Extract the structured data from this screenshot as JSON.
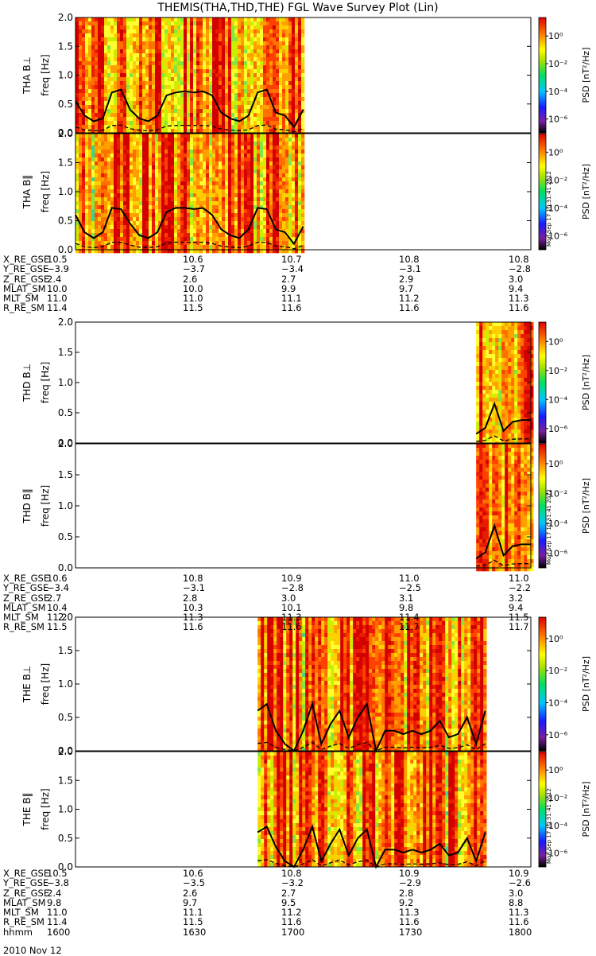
{
  "title": "THEMIS(THA,THD,THE) FGL Wave Survey Plot (Lin)",
  "colors": {
    "trace": "#000000",
    "background": "#ffffff"
  },
  "colorbar": {
    "label": "PSD [nT²/Hz]",
    "ticks": [
      "10⁰",
      "10⁻²",
      "10⁻⁴",
      "10⁻⁶"
    ],
    "stamp": "Mon Sep 17 10:31:41 2012"
  },
  "chart_data": [
    {
      "type": "heatmap",
      "probe": "THA",
      "panels": [
        {
          "label": "THA B⊥",
          "ylabel": "freq [Hz]",
          "ylim": [
            0,
            2
          ],
          "yticks": [
            "2.0",
            "1.5",
            "1.0",
            "0.5",
            "0.0"
          ],
          "data_range": [
            0.0,
            0.5
          ],
          "line_x": [
            0.0,
            0.02,
            0.04,
            0.06,
            0.08,
            0.1,
            0.12,
            0.14,
            0.16,
            0.18,
            0.2,
            0.22,
            0.24,
            0.26,
            0.28,
            0.3,
            0.32,
            0.34,
            0.36,
            0.38,
            0.4,
            0.42,
            0.44,
            0.46,
            0.48,
            0.5
          ],
          "line_y": [
            0.55,
            0.3,
            0.2,
            0.25,
            0.7,
            0.75,
            0.4,
            0.25,
            0.2,
            0.3,
            0.65,
            0.7,
            0.72,
            0.7,
            0.72,
            0.65,
            0.35,
            0.25,
            0.2,
            0.3,
            0.7,
            0.75,
            0.35,
            0.3,
            0.1,
            0.4
          ]
        },
        {
          "label": "THA B‖",
          "ylabel": "freq [Hz]",
          "ylim": [
            0,
            2
          ],
          "yticks": [
            "2.0",
            "1.5",
            "1.0",
            "0.5",
            "0.0"
          ],
          "data_range": [
            0.0,
            0.5
          ],
          "line_x": [
            0.0,
            0.02,
            0.04,
            0.06,
            0.08,
            0.1,
            0.12,
            0.14,
            0.16,
            0.18,
            0.2,
            0.22,
            0.24,
            0.26,
            0.28,
            0.3,
            0.32,
            0.34,
            0.36,
            0.38,
            0.4,
            0.42,
            0.44,
            0.46,
            0.48,
            0.5
          ],
          "line_y": [
            0.6,
            0.3,
            0.2,
            0.3,
            0.72,
            0.7,
            0.45,
            0.25,
            0.2,
            0.3,
            0.65,
            0.72,
            0.72,
            0.7,
            0.72,
            0.6,
            0.35,
            0.25,
            0.2,
            0.35,
            0.72,
            0.7,
            0.35,
            0.3,
            0.1,
            0.4
          ]
        }
      ],
      "ephemeris": [
        {
          "label": "X_RE_GSE",
          "values": [
            "10.5",
            "10.6",
            "10.7",
            "10.8",
            "10.8"
          ]
        },
        {
          "label": "Y_RE_GSE",
          "values": [
            "−3.9",
            "−3.7",
            "−3.4",
            "−3.1",
            "−2.8"
          ]
        },
        {
          "label": "Z_RE_GSE",
          "values": [
            "2.4",
            "2.6",
            "2.7",
            "2.9",
            "3.0"
          ]
        },
        {
          "label": "MLAT_SM",
          "values": [
            "10.0",
            "10.0",
            "9.9",
            "9.7",
            "9.4"
          ]
        },
        {
          "label": "MLT_SM",
          "values": [
            "11.0",
            "11.0",
            "11.1",
            "11.2",
            "11.3"
          ]
        },
        {
          "label": "R_RE_SM",
          "values": [
            "11.4",
            "11.5",
            "11.6",
            "11.6",
            "11.6"
          ]
        }
      ]
    },
    {
      "type": "heatmap",
      "probe": "THD",
      "panels": [
        {
          "label": "THD B⊥",
          "ylabel": "freq [Hz]",
          "ylim": [
            0,
            2
          ],
          "yticks": [
            "2.0",
            "1.5",
            "1.0",
            "0.5",
            "0.0"
          ],
          "data_range": [
            0.88,
            1.0
          ],
          "line_x": [
            0.88,
            0.9,
            0.92,
            0.94,
            0.96,
            0.98,
            1.0
          ],
          "line_y": [
            0.15,
            0.25,
            0.65,
            0.2,
            0.35,
            0.38,
            0.38
          ]
        },
        {
          "label": "THD B‖",
          "ylabel": "freq [Hz]",
          "ylim": [
            0,
            2
          ],
          "yticks": [
            "2.0",
            "1.5",
            "1.0",
            "0.5",
            "0.0"
          ],
          "data_range": [
            0.88,
            1.0
          ],
          "line_x": [
            0.88,
            0.9,
            0.92,
            0.94,
            0.96,
            0.98,
            1.0
          ],
          "line_y": [
            0.15,
            0.25,
            0.68,
            0.2,
            0.35,
            0.38,
            0.38
          ]
        }
      ],
      "ephemeris": [
        {
          "label": "X_RE_GSE",
          "values": [
            "10.6",
            "10.8",
            "10.9",
            "11.0",
            "11.0"
          ]
        },
        {
          "label": "Y_RE_GSE",
          "values": [
            "−3.4",
            "−3.1",
            "−2.8",
            "−2.5",
            "−2.2"
          ]
        },
        {
          "label": "Z_RE_GSE",
          "values": [
            "2.7",
            "2.8",
            "3.0",
            "3.1",
            "3.2"
          ]
        },
        {
          "label": "MLAT_SM",
          "values": [
            "10.4",
            "10.3",
            "10.1",
            "9.8",
            "9.4"
          ]
        },
        {
          "label": "MLT_SM",
          "values": [
            "11.2",
            "11.3",
            "11.3",
            "11.4",
            "11.5"
          ]
        },
        {
          "label": "R_RE_SM",
          "values": [
            "11.5",
            "11.6",
            "11.6",
            "11.7",
            "11.7"
          ]
        }
      ]
    },
    {
      "type": "heatmap",
      "probe": "THE",
      "panels": [
        {
          "label": "THE B⊥",
          "ylabel": "freq [Hz]",
          "ylim": [
            0,
            2
          ],
          "yticks": [
            "2.0",
            "1.5",
            "1.0",
            "0.5",
            "0.0"
          ],
          "data_range": [
            0.4,
            0.9
          ],
          "line_x": [
            0.4,
            0.42,
            0.44,
            0.46,
            0.48,
            0.5,
            0.52,
            0.54,
            0.56,
            0.58,
            0.6,
            0.62,
            0.64,
            0.66,
            0.68,
            0.7,
            0.72,
            0.74,
            0.76,
            0.78,
            0.8,
            0.82,
            0.84,
            0.86,
            0.88,
            0.9
          ],
          "line_y": [
            0.6,
            0.7,
            0.3,
            0.1,
            0.0,
            0.3,
            0.7,
            0.1,
            0.4,
            0.6,
            0.2,
            0.5,
            0.7,
            0.0,
            0.3,
            0.3,
            0.25,
            0.3,
            0.25,
            0.3,
            0.45,
            0.2,
            0.25,
            0.5,
            0.1,
            0.6
          ]
        },
        {
          "label": "THE B‖",
          "ylabel": "freq [Hz]",
          "ylim": [
            0,
            2
          ],
          "yticks": [
            "2.0",
            "1.5",
            "1.0",
            "0.5",
            "0.0"
          ],
          "data_range": [
            0.4,
            0.9
          ],
          "line_x": [
            0.4,
            0.42,
            0.44,
            0.46,
            0.48,
            0.5,
            0.52,
            0.54,
            0.56,
            0.58,
            0.6,
            0.62,
            0.64,
            0.66,
            0.68,
            0.7,
            0.72,
            0.74,
            0.76,
            0.78,
            0.8,
            0.82,
            0.84,
            0.86,
            0.88,
            0.9
          ],
          "line_y": [
            0.6,
            0.7,
            0.35,
            0.1,
            0.0,
            0.3,
            0.7,
            0.1,
            0.4,
            0.65,
            0.2,
            0.5,
            0.65,
            0.0,
            0.3,
            0.3,
            0.25,
            0.3,
            0.25,
            0.3,
            0.4,
            0.2,
            0.25,
            0.5,
            0.1,
            0.6
          ]
        }
      ],
      "ephemeris": [
        {
          "label": "X_RE_GSE",
          "values": [
            "10.5",
            "10.6",
            "10.8",
            "10.9",
            "10.9"
          ]
        },
        {
          "label": "Y_RE_GSE",
          "values": [
            "−3.8",
            "−3.5",
            "−3.2",
            "−2.9",
            "−2.6"
          ]
        },
        {
          "label": "Z_RE_GSE",
          "values": [
            "2.4",
            "2.6",
            "2.7",
            "2.8",
            "3.0"
          ]
        },
        {
          "label": "MLAT_SM",
          "values": [
            "9.8",
            "9.7",
            "9.5",
            "9.2",
            "8.8"
          ]
        },
        {
          "label": "MLT_SM",
          "values": [
            "11.0",
            "11.1",
            "11.2",
            "11.3",
            "11.3"
          ]
        },
        {
          "label": "R_RE_SM",
          "values": [
            "11.4",
            "11.5",
            "11.6",
            "11.6",
            "11.6"
          ]
        },
        {
          "label": "hhmm",
          "values": [
            "1600",
            "1630",
            "1700",
            "1730",
            "1800"
          ]
        }
      ],
      "footer": "2010 Nov 12"
    }
  ]
}
